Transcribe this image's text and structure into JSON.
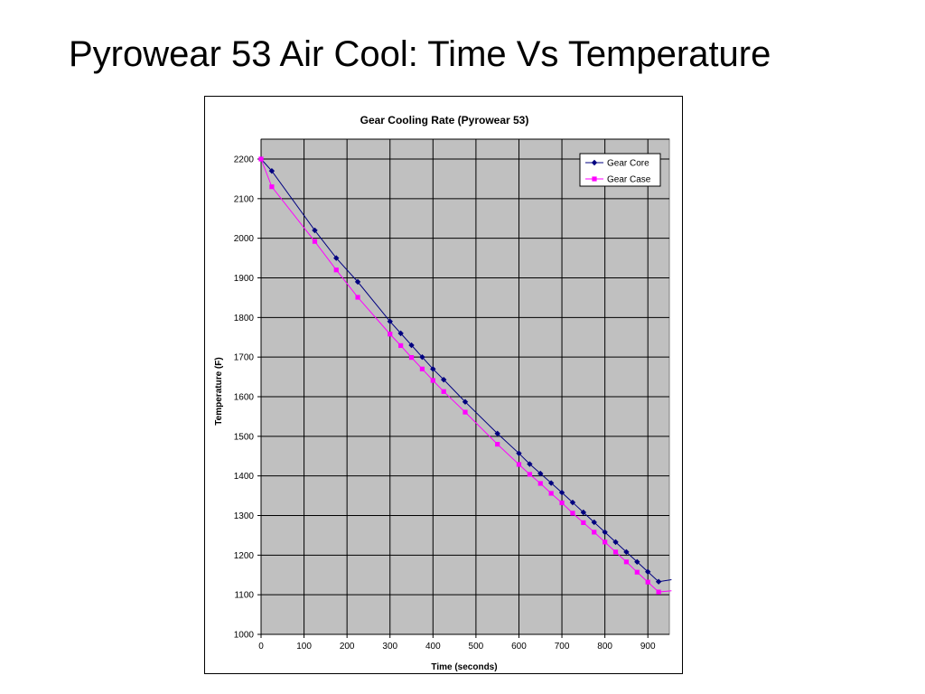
{
  "slide": {
    "title": "Pyrowear 53 Air Cool: Time Vs Temperature"
  },
  "chart_data": {
    "type": "line",
    "title": "Gear Cooling Rate (Pyrowear 53)",
    "xlabel": "Time (seconds)",
    "ylabel": "Temperature (F)",
    "xlim": [
      0,
      950
    ],
    "ylim": [
      1000,
      2200
    ],
    "x_ticks": [
      0,
      100,
      200,
      300,
      400,
      500,
      600,
      700,
      800,
      900
    ],
    "y_ticks": [
      1000,
      1100,
      1200,
      1300,
      1400,
      1500,
      1600,
      1700,
      1800,
      1900,
      2000,
      2100,
      2200
    ],
    "grid": true,
    "legend_position": "top-right",
    "plot_background": "#c0c0c0",
    "series": [
      {
        "name": "Gear Core",
        "color": "#000080",
        "marker": "diamond",
        "x": [
          0,
          25,
          125,
          175,
          225,
          300,
          325,
          350,
          375,
          400,
          425,
          475,
          550,
          600,
          625,
          650,
          675,
          700,
          725,
          750,
          775,
          800,
          825,
          850,
          875,
          900,
          925
        ],
        "y": [
          2200,
          2170,
          2020,
          1950,
          1890,
          1790,
          1760,
          1730,
          1700,
          1670,
          1643,
          1587,
          1507,
          1457,
          1430,
          1406,
          1382,
          1358,
          1333,
          1308,
          1283,
          1258,
          1233,
          1208,
          1183,
          1158,
          1133
        ],
        "line_end": [
          955,
          1138
        ]
      },
      {
        "name": "Gear Case",
        "color": "#ff00ff",
        "marker": "square",
        "x": [
          0,
          25,
          125,
          175,
          225,
          300,
          325,
          350,
          375,
          400,
          425,
          475,
          550,
          600,
          625,
          650,
          675,
          700,
          725,
          750,
          775,
          800,
          825,
          850,
          875,
          900,
          925
        ],
        "y": [
          2200,
          2130,
          1992,
          1920,
          1851,
          1758,
          1729,
          1699,
          1670,
          1641,
          1613,
          1561,
          1480,
          1429,
          1404,
          1381,
          1356,
          1332,
          1306,
          1282,
          1258,
          1233,
          1208,
          1183,
          1157,
          1132,
          1107
        ],
        "line_end": [
          955,
          1110
        ]
      }
    ]
  }
}
